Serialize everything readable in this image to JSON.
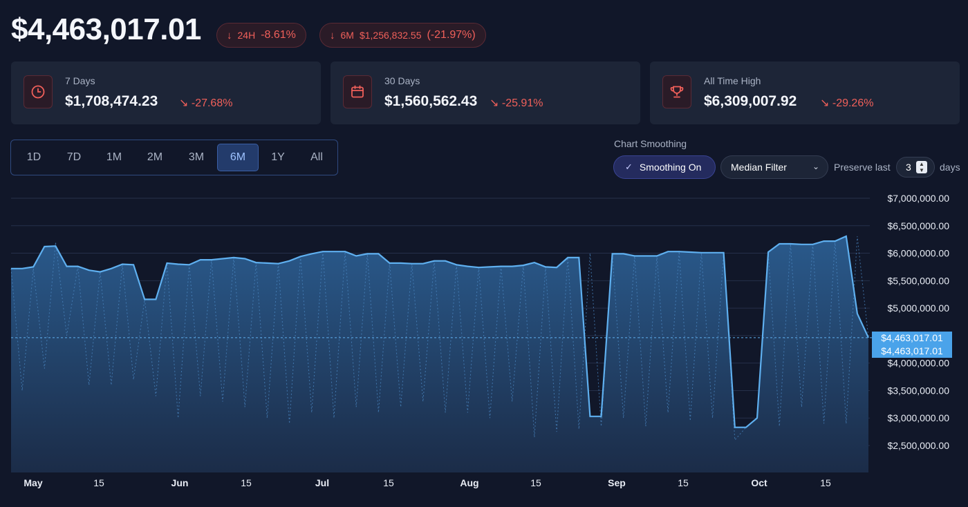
{
  "header": {
    "balance": "$4,463,017.01",
    "pill_24h": {
      "label": "24H",
      "change": "-8.61%"
    },
    "pill_6m": {
      "label": "6M",
      "amount": "$1,256,832.55",
      "change": "(-21.97%)"
    }
  },
  "cards": [
    {
      "title": "7 Days",
      "value": "$1,708,474.23",
      "change": "-27.68%",
      "icon": "clock-icon"
    },
    {
      "title": "30 Days",
      "value": "$1,560,562.43",
      "change": "-25.91%",
      "icon": "calendar-icon"
    },
    {
      "title": "All Time High",
      "value": "$6,309,007.92",
      "change": "-29.26%",
      "icon": "trophy-icon"
    }
  ],
  "ranges": [
    "1D",
    "7D",
    "1M",
    "2M",
    "3M",
    "6M",
    "1Y",
    "All"
  ],
  "active_range": "6M",
  "smoothing": {
    "title": "Chart Smoothing",
    "toggle_label": "Smoothing On",
    "filter": "Median Filter",
    "preserve_label": "Preserve last",
    "preserve_value": "3",
    "days_label": "days"
  },
  "colors": {
    "accent": "#4aa3ea",
    "negative": "#f0605a",
    "background": "#111729"
  },
  "chart_data": {
    "type": "area",
    "y_ticks": [
      "$7,000,000.00",
      "$6,500,000.00",
      "$6,000,000.00",
      "$5,500,000.00",
      "$5,000,000.00",
      "$4,500,000.00",
      "$4,000,000.00",
      "$3,500,000.00",
      "$3,000,000.00",
      "$2,500,000.00"
    ],
    "ylim": [
      2250000,
      7200000
    ],
    "x_ticks": [
      {
        "label": "May",
        "major": true
      },
      {
        "label": "15",
        "major": false
      },
      {
        "label": "Jun",
        "major": true
      },
      {
        "label": "15",
        "major": false
      },
      {
        "label": "Jul",
        "major": true
      },
      {
        "label": "15",
        "major": false
      },
      {
        "label": "Aug",
        "major": true
      },
      {
        "label": "15",
        "major": false
      },
      {
        "label": "Sep",
        "major": true
      },
      {
        "label": "15",
        "major": false
      },
      {
        "label": "Oct",
        "major": true
      },
      {
        "label": "15",
        "major": false
      }
    ],
    "current_value_label": "$4,463,017.01",
    "current_value": 4463017.01,
    "smoothed": [
      5720000,
      5720000,
      5750000,
      6120000,
      6130000,
      5760000,
      5760000,
      5690000,
      5660000,
      5720000,
      5800000,
      5790000,
      5160000,
      5160000,
      5820000,
      5800000,
      5790000,
      5880000,
      5880000,
      5900000,
      5920000,
      5900000,
      5830000,
      5820000,
      5810000,
      5860000,
      5940000,
      5990000,
      6030000,
      6030000,
      6030000,
      5950000,
      5990000,
      5990000,
      5820000,
      5820000,
      5810000,
      5810000,
      5860000,
      5860000,
      5790000,
      5760000,
      5740000,
      5750000,
      5760000,
      5760000,
      5780000,
      5830000,
      5750000,
      5740000,
      5920000,
      5920000,
      3030000,
      3030000,
      5990000,
      5990000,
      5950000,
      5950000,
      5950000,
      6030000,
      6030000,
      6020000,
      6010000,
      6010000,
      6010000,
      2830000,
      2830000,
      3000000,
      6020000,
      6170000,
      6170000,
      6160000,
      6160000,
      6220000,
      6220000,
      6309000,
      4900000,
      4463017
    ],
    "raw": [
      5720000,
      3500000,
      5720000,
      3900000,
      6200000,
      4500000,
      5760000,
      3600000,
      5660000,
      3600000,
      5800000,
      3700000,
      5160000,
      3400000,
      5820000,
      3000000,
      5790000,
      3400000,
      5880000,
      3300000,
      5920000,
      3200000,
      5830000,
      3000000,
      5810000,
      2900000,
      5940000,
      3100000,
      6030000,
      3000000,
      6030000,
      3200000,
      5990000,
      3100000,
      5820000,
      3200000,
      5810000,
      3300000,
      5860000,
      3100000,
      5790000,
      3100000,
      5740000,
      3000000,
      5760000,
      3300000,
      5780000,
      2650000,
      5750000,
      2750000,
      5920000,
      2800000,
      6000000,
      2850000,
      5990000,
      3000000,
      5950000,
      2850000,
      5950000,
      3100000,
      6030000,
      2950000,
      6010000,
      3000000,
      6010000,
      2600000,
      2830000,
      3000000,
      6020000,
      2850000,
      6170000,
      3200000,
      6160000,
      2900000,
      6220000,
      2900000,
      6309000,
      4463017
    ]
  }
}
